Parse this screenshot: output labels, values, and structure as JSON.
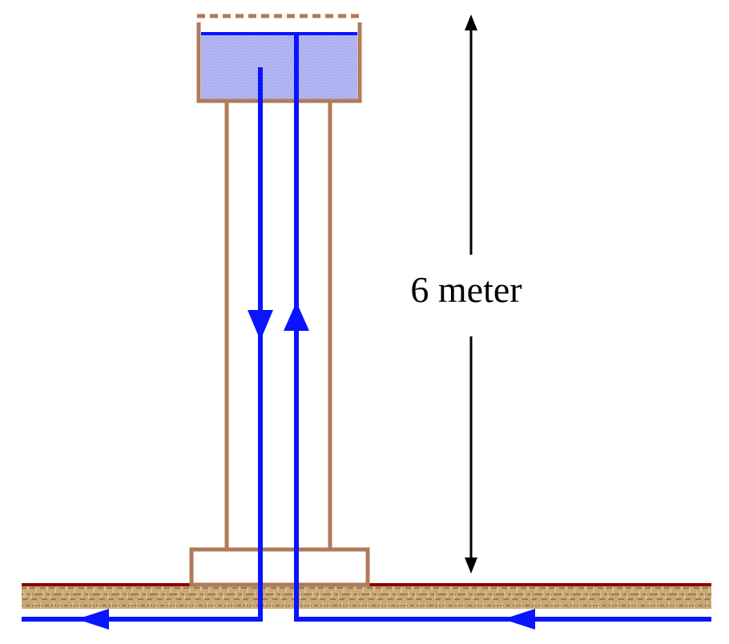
{
  "height_label": "6 meter",
  "colors": {
    "structure": "#b07a5a",
    "water": "#0a14ff",
    "tank_fill": "#aab0f0",
    "ground_top": "#8b0000",
    "ground_fill": "#c9a877",
    "dimension": "#000000"
  }
}
